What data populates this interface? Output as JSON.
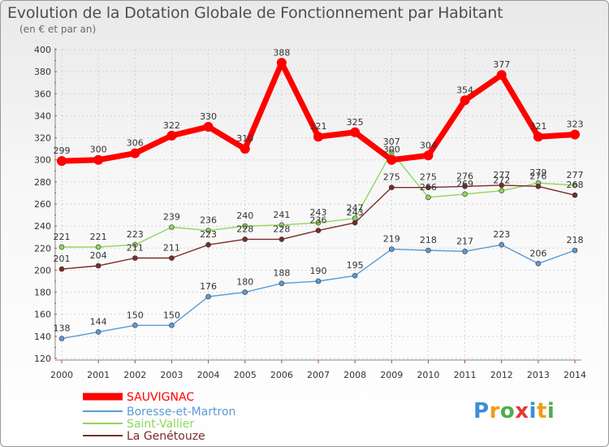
{
  "header": {
    "title": "Evolution de la Dotation Globale de Fonctionnement par Habitant",
    "subtitle": "(en € et par an)"
  },
  "logo": {
    "text": "Proxiti"
  },
  "chart_data": {
    "type": "line",
    "title": "Evolution de la Dotation Globale de Fonctionnement par Habitant",
    "subtitle": "(en € et par an)",
    "xlabel": "",
    "ylabel": "",
    "ylim": [
      120,
      400
    ],
    "yticks": [
      120,
      140,
      160,
      180,
      200,
      220,
      240,
      260,
      280,
      300,
      320,
      340,
      360,
      380,
      400
    ],
    "grid": true,
    "legend_position": "bottom-left",
    "x": [
      "2000",
      "2001",
      "2002",
      "2003",
      "2004",
      "2005",
      "2006",
      "2007",
      "2008",
      "2009",
      "2010",
      "2011",
      "2012",
      "2013",
      "2014"
    ],
    "series": [
      {
        "name": "SAUVIGNAC",
        "color": "#ff0000",
        "values": [
          299,
          300,
          306,
          322,
          330,
          310,
          388,
          321,
          325,
          300,
          304,
          354,
          377,
          321,
          323
        ],
        "labels": [
          "299",
          "300",
          "306",
          "322",
          "330",
          "310",
          "388",
          "321",
          "325",
          "300",
          "304",
          "354",
          "377",
          "321",
          "323"
        ]
      },
      {
        "name": "Boresse-et-Martron",
        "color": "#5b9bd5",
        "values": [
          138,
          144,
          150,
          150,
          176,
          180,
          188,
          190,
          195,
          219,
          218,
          217,
          223,
          206,
          218
        ],
        "labels": [
          "138",
          "144",
          "150",
          "150",
          "176",
          "180",
          "188",
          "190",
          "195",
          "219",
          "218",
          "217",
          "223",
          "206",
          "218"
        ]
      },
      {
        "name": "Saint-Vallier",
        "color": "#8fd65a",
        "values": [
          221,
          221,
          223,
          239,
          236,
          240,
          241,
          243,
          247,
          307,
          266,
          269,
          272,
          279,
          277
        ],
        "labels": [
          "221",
          "221",
          "223",
          "239",
          "236",
          "240",
          "241",
          "243",
          "247",
          "307",
          "266",
          "269",
          "272",
          "279",
          "277"
        ]
      },
      {
        "name": "La Genétouze",
        "color": "#7a2b2b",
        "values": [
          201,
          204,
          211,
          211,
          223,
          228,
          228,
          236,
          243,
          275,
          275,
          276,
          277,
          276,
          268
        ],
        "labels": [
          "201",
          "204",
          "211",
          "211",
          "223",
          "228",
          "228",
          "236",
          "243",
          "275",
          "275",
          "276",
          "277",
          "276",
          "268"
        ]
      }
    ]
  }
}
